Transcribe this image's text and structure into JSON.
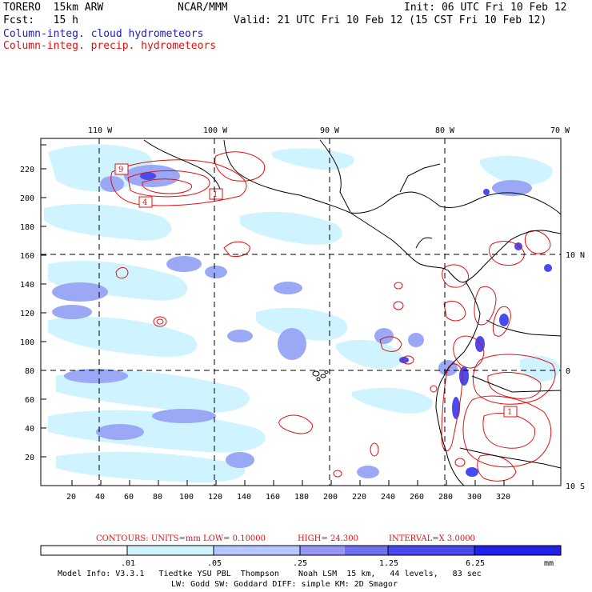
{
  "header": {
    "model_name": "TORERO  15km ARW",
    "center": "NCAR/MMM",
    "init": "Init: 06 UTC Fri 10 Feb 12",
    "fcst": "Fcst:   15 h",
    "valid": "Valid: 21 UTC Fri 10 Feb 12 (15 CST Fri 10 Feb 12)",
    "field1": "Column-integ. cloud hydrometeors",
    "field2": "Column-integ. precip. hydrometeors"
  },
  "map": {
    "lon_labels": [
      "110 W",
      "100 W",
      "90 W",
      "80 W",
      "70 W"
    ],
    "lat_labels": [
      "10 N",
      "0",
      "10 S"
    ],
    "x_ticks": [
      "20",
      "40",
      "60",
      "80",
      "100",
      "120",
      "140",
      "160",
      "180",
      "200",
      "220",
      "240",
      "260",
      "280",
      "300",
      "320"
    ],
    "y_ticks": [
      "20",
      "40",
      "60",
      "80",
      "100",
      "120",
      "140",
      "160",
      "180",
      "200",
      "220"
    ],
    "contour_labels": [
      "9",
      "4",
      "1",
      "1"
    ]
  },
  "contours_info": {
    "units": "CONTOURS:  UNITS=mm  LOW= 0.10000",
    "high": "HIGH=  24.300",
    "interval": "INTERVAL=X  3.0000"
  },
  "colorbar": {
    "labels": [
      ".01",
      ".05",
      ".25",
      "1.25",
      "6.25"
    ],
    "unit": "mm",
    "colors": [
      "#ffffff",
      "#d0f4ff",
      "#b4c8ff",
      "#9696f5",
      "#7070f0",
      "#4848ec",
      "#2020e8"
    ]
  },
  "model_info": {
    "line1": "Model Info: V3.3.1   Tiedtke YSU PBL  Thompson    Noah LSM  15 km,   44 levels,   83 sec",
    "line2": "LW: Godd SW: Goddard DIFF: simple KM: 2D Smagor"
  }
}
